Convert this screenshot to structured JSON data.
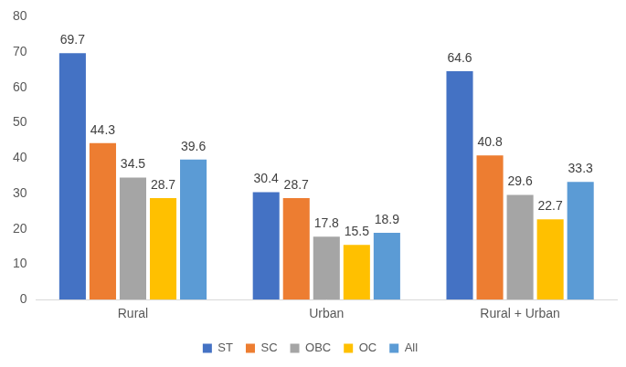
{
  "chart_data": {
    "type": "bar",
    "categories": [
      "Rural",
      "Urban",
      "Rural + Urban"
    ],
    "series": [
      {
        "name": "ST",
        "color": "#4472c4",
        "values": [
          69.7,
          30.4,
          64.6
        ]
      },
      {
        "name": "SC",
        "color": "#ed7d31",
        "values": [
          44.3,
          28.7,
          40.8
        ]
      },
      {
        "name": "OBC",
        "color": "#a5a5a5",
        "values": [
          34.5,
          17.8,
          29.6
        ]
      },
      {
        "name": "OC",
        "color": "#ffc000",
        "values": [
          28.7,
          15.5,
          22.7
        ]
      },
      {
        "name": "All",
        "color": "#5b9bd5",
        "values": [
          39.6,
          18.9,
          33.3
        ]
      }
    ],
    "ylim": [
      0,
      80
    ],
    "yticks": [
      0,
      10,
      20,
      30,
      40,
      50,
      60,
      70,
      80
    ],
    "grid": false,
    "legend": "bottom",
    "data_labels": true
  }
}
